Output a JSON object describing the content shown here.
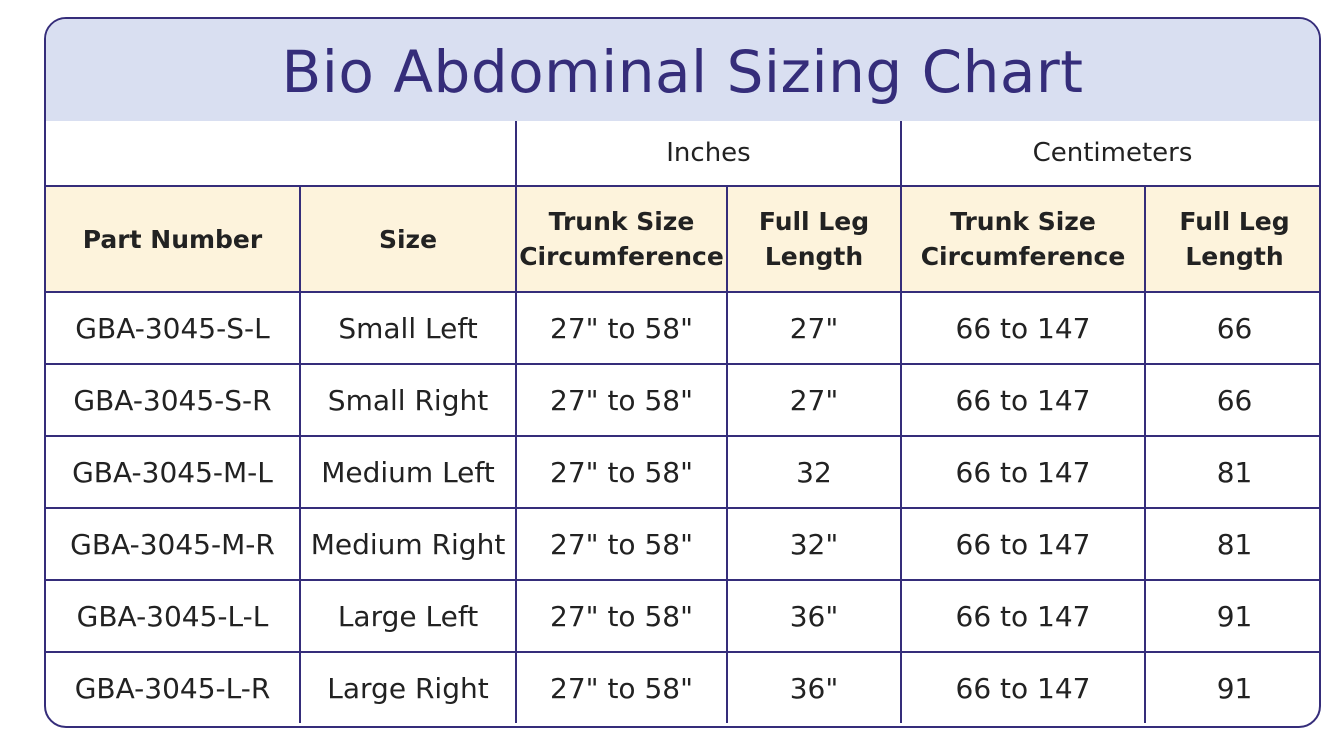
{
  "title": "Bio Abdominal Sizing Chart",
  "units": {
    "inches": "Inches",
    "centimeters": "Centimeters"
  },
  "headers": {
    "part_number": "Part Number",
    "size": "Size",
    "trunk_in": [
      "Trunk Size",
      "Circumference"
    ],
    "leg_in": [
      "Full Leg",
      "Length"
    ],
    "trunk_cm": [
      "Trunk Size",
      "Circumference"
    ],
    "leg_cm": [
      "Full Leg",
      "Length"
    ]
  },
  "rows": [
    {
      "part": "GBA-3045-S-L",
      "size": "Small Left",
      "trunk_in": "27\" to 58\"",
      "leg_in": "27\"",
      "trunk_cm": "66 to 147",
      "leg_cm": "66"
    },
    {
      "part": "GBA-3045-S-R",
      "size": "Small Right",
      "trunk_in": "27\" to 58\"",
      "leg_in": "27\"",
      "trunk_cm": "66 to 147",
      "leg_cm": "66"
    },
    {
      "part": "GBA-3045-M-L",
      "size": "Medium Left",
      "trunk_in": "27\" to 58\"",
      "leg_in": "32",
      "trunk_cm": "66 to 147",
      "leg_cm": "81"
    },
    {
      "part": "GBA-3045-M-R",
      "size": "Medium Right",
      "trunk_in": "27\" to 58\"",
      "leg_in": "32\"",
      "trunk_cm": "66 to 147",
      "leg_cm": "81"
    },
    {
      "part": "GBA-3045-L-L",
      "size": "Large Left",
      "trunk_in": "27\" to 58\"",
      "leg_in": "36\"",
      "trunk_cm": "66 to 147",
      "leg_cm": "91"
    },
    {
      "part": "GBA-3045-L-R",
      "size": "Large Right",
      "trunk_in": "27\" to 58\"",
      "leg_in": "36\"",
      "trunk_cm": "66 to 147",
      "leg_cm": "91"
    }
  ],
  "colors": {
    "border": "#352d7a",
    "title_bg": "#d9dff1",
    "header_bg": "#fdf3dc",
    "title_text": "#352d7a"
  }
}
